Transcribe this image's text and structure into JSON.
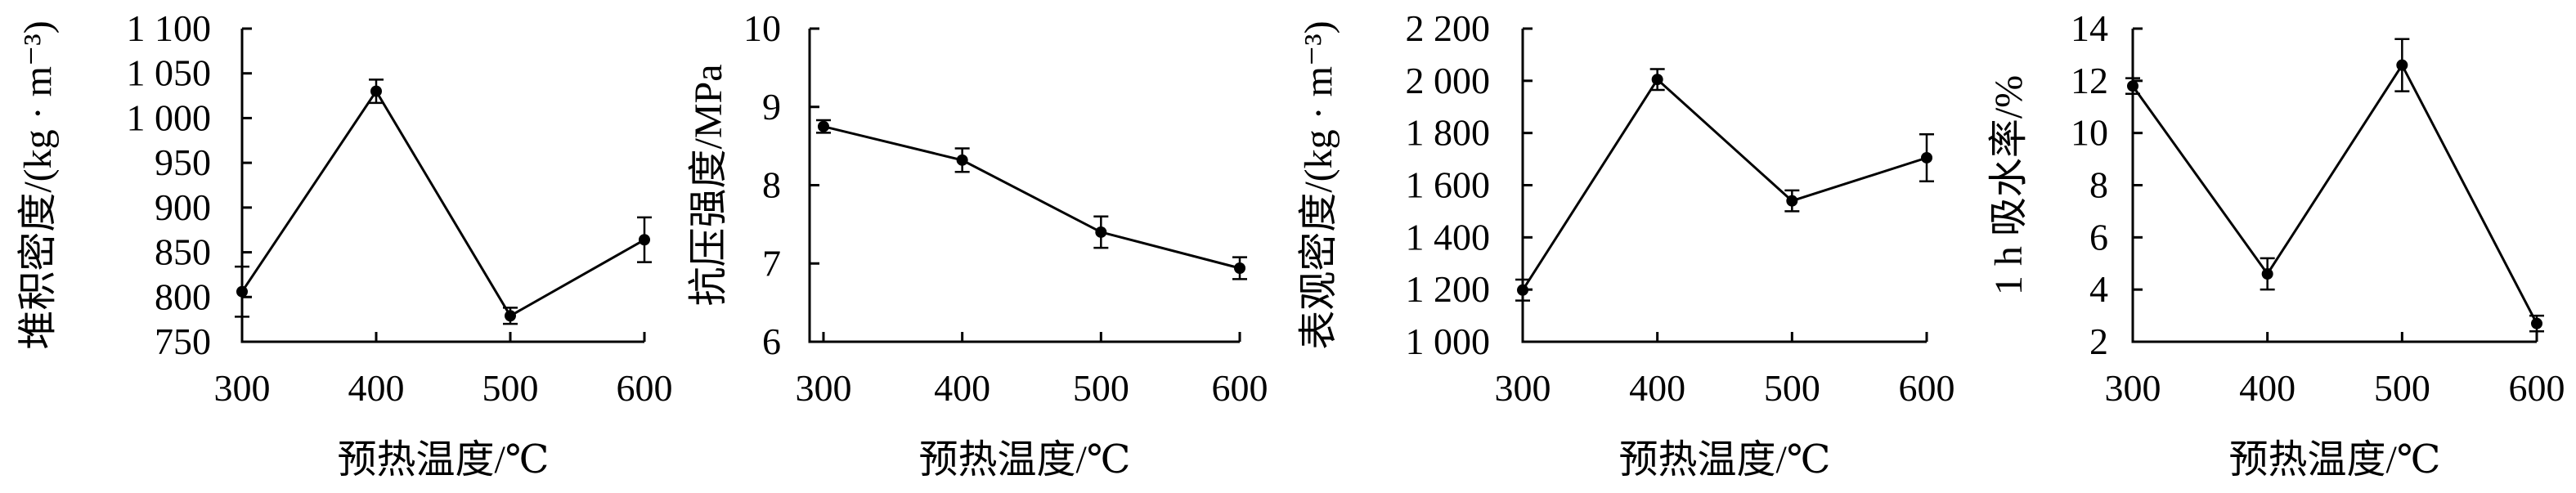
{
  "chart_data": [
    {
      "type": "line",
      "xlabel": "预热温度/℃",
      "ylabel": "堆积密度/(kg · m⁻³)",
      "x": [
        300,
        400,
        500,
        600
      ],
      "xticks": [
        "300",
        "400",
        "500",
        "600"
      ],
      "xlim": [
        300,
        600
      ],
      "ylim": [
        750,
        1100
      ],
      "yticks": [
        "750",
        "800",
        "850",
        "900",
        "950",
        "1 000",
        "1 050",
        "1 100"
      ],
      "series": [
        {
          "values": [
            806,
            1030,
            779,
            864
          ],
          "errors": [
            28,
            13,
            9,
            25
          ]
        }
      ]
    },
    {
      "type": "line",
      "xlabel": "预热温度/℃",
      "ylabel": "抗压强度/MPa",
      "x": [
        300,
        400,
        500,
        600
      ],
      "xticks": [
        "300",
        "400",
        "500",
        "600"
      ],
      "xlim": [
        290,
        600
      ],
      "ylim": [
        6,
        10
      ],
      "yticks": [
        "6",
        "7",
        "8",
        "9",
        "10"
      ],
      "series": [
        {
          "values": [
            8.75,
            8.32,
            7.4,
            6.94
          ],
          "errors": [
            0.08,
            0.15,
            0.2,
            0.14
          ]
        }
      ]
    },
    {
      "type": "line",
      "xlabel": "预热温度/℃",
      "ylabel": "表观密度/(kg · m⁻³)",
      "x": [
        300,
        400,
        500,
        600
      ],
      "xticks": [
        "300",
        "400",
        "500",
        "600"
      ],
      "xlim": [
        300,
        600
      ],
      "ylim": [
        1000,
        2200
      ],
      "yticks": [
        "1 000",
        "1 200",
        "1 400",
        "1 600",
        "1 800",
        "2 000",
        "2 200"
      ],
      "series": [
        {
          "values": [
            1198,
            2005,
            1540,
            1705
          ],
          "errors": [
            40,
            40,
            40,
            90
          ]
        }
      ]
    },
    {
      "type": "line",
      "xlabel": "预热温度/℃",
      "ylabel": "1 h 吸水率/%",
      "x": [
        300,
        400,
        500,
        600
      ],
      "xticks": [
        "300",
        "400",
        "500",
        "600"
      ],
      "xlim": [
        300,
        600
      ],
      "ylim": [
        2,
        14
      ],
      "yticks": [
        "2",
        "4",
        "6",
        "8",
        "10",
        "12",
        "14"
      ],
      "series": [
        {
          "values": [
            11.8,
            4.6,
            12.6,
            2.7
          ],
          "errors": [
            0.3,
            0.6,
            1.0,
            0.3
          ]
        }
      ]
    }
  ]
}
